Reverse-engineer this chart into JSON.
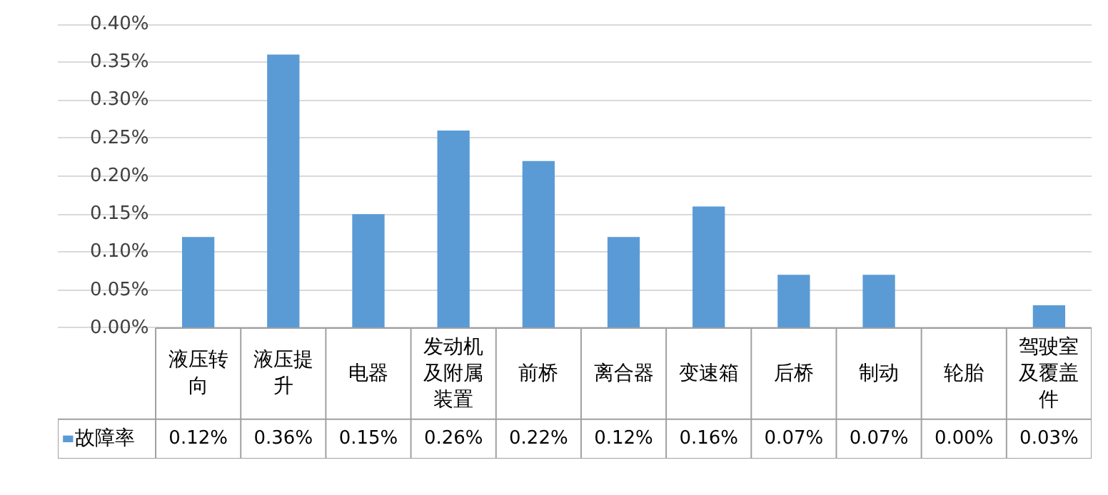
{
  "chart_data": {
    "type": "bar",
    "categories": [
      "液压转向",
      "液压提升",
      "电器",
      "发动机及附属装置",
      "前桥",
      "离合器",
      "变速箱",
      "后桥",
      "制动",
      "轮胎",
      "驾驶室及覆盖件"
    ],
    "series": [
      {
        "name": "故障率",
        "color": "#5b9bd5",
        "values": [
          0.12,
          0.36,
          0.15,
          0.26,
          0.22,
          0.12,
          0.16,
          0.07,
          0.07,
          0.0,
          0.03
        ],
        "value_labels": [
          "0.12%",
          "0.36%",
          "0.15%",
          "0.26%",
          "0.22%",
          "0.12%",
          "0.16%",
          "0.07%",
          "0.07%",
          "0.00%",
          "0.03%"
        ]
      }
    ],
    "ylim": [
      0,
      0.4
    ],
    "yticks": [
      {
        "value": 0,
        "label": "0.00%"
      },
      {
        "value": 0.05,
        "label": "0.05%"
      },
      {
        "value": 0.1,
        "label": "0.10%"
      },
      {
        "value": 0.15,
        "label": "0.15%"
      },
      {
        "value": 0.2,
        "label": "0.20%"
      },
      {
        "value": 0.25,
        "label": "0.25%"
      },
      {
        "value": 0.3,
        "label": "0.30%"
      },
      {
        "value": 0.35,
        "label": "0.35%"
      },
      {
        "value": 0.4,
        "label": "0.40%"
      }
    ],
    "grid": "y",
    "legend": "bottom"
  }
}
